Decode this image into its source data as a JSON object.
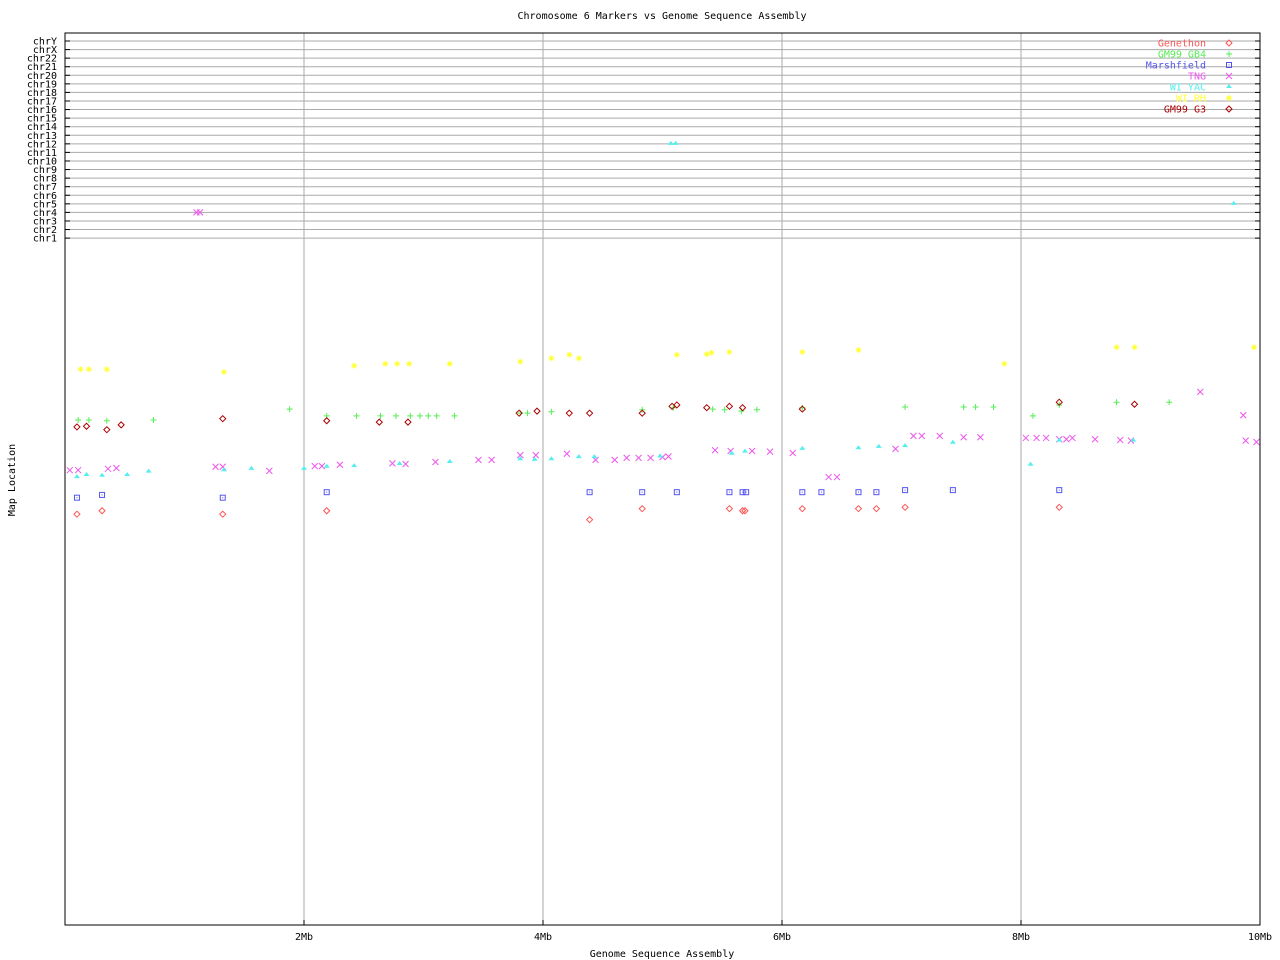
{
  "chart_data": {
    "type": "scatter",
    "title": "Chromosome 6 Markers vs Genome Sequence Assembly",
    "xlabel": "Genome Sequence Assembly",
    "ylabel": "Map Location",
    "xlim": [
      0,
      10
    ],
    "x_unit": "Mb",
    "x_ticks": [
      "2Mb",
      "4Mb",
      "6Mb",
      "8Mb",
      "10Mb"
    ],
    "x_tick_values": [
      2,
      4,
      6,
      8,
      10
    ],
    "y_categories": [
      "chrY",
      "chrX",
      "chr22",
      "chr21",
      "chr20",
      "chr19",
      "chr18",
      "chr17",
      "chr16",
      "chr15",
      "chr14",
      "chr13",
      "chr12",
      "chr11",
      "chr10",
      "chr9",
      "chr8",
      "chr7",
      "chr6",
      "chr5",
      "chr4",
      "chr3",
      "chr2",
      "chr1"
    ],
    "map_location_range": [
      0,
      100
    ],
    "grid": true,
    "legend_position": "top-right",
    "series": [
      {
        "name": "Genethon",
        "color": "#ff5555",
        "marker": "diamond",
        "points": [
          [
            0.1,
            59.8
          ],
          [
            0.31,
            60.3
          ],
          [
            1.32,
            59.8
          ],
          [
            2.19,
            60.3
          ],
          [
            4.39,
            59.0
          ],
          [
            4.83,
            60.6
          ],
          [
            5.56,
            60.6
          ],
          [
            5.67,
            60.3
          ],
          [
            5.69,
            60.3
          ],
          [
            6.17,
            60.6
          ],
          [
            6.64,
            60.6
          ],
          [
            6.79,
            60.6
          ],
          [
            7.03,
            60.8
          ],
          [
            8.32,
            60.8
          ]
        ]
      },
      {
        "name": "GM99 GB4",
        "color": "#55ee55",
        "marker": "plus",
        "points": [
          [
            0.11,
            73.5
          ],
          [
            0.2,
            73.5
          ],
          [
            0.35,
            73.4
          ],
          [
            0.74,
            73.5
          ],
          [
            1.88,
            75.1
          ],
          [
            2.19,
            74.1
          ],
          [
            2.44,
            74.1
          ],
          [
            2.64,
            74.1
          ],
          [
            2.77,
            74.1
          ],
          [
            2.89,
            74.1
          ],
          [
            2.97,
            74.1
          ],
          [
            3.04,
            74.1
          ],
          [
            3.11,
            74.1
          ],
          [
            3.26,
            74.1
          ],
          [
            3.81,
            74.5
          ],
          [
            3.87,
            74.5
          ],
          [
            4.07,
            74.7
          ],
          [
            4.83,
            75.0
          ],
          [
            5.09,
            75.3
          ],
          [
            5.42,
            75.1
          ],
          [
            5.52,
            75.0
          ],
          [
            5.66,
            74.8
          ],
          [
            5.79,
            75.0
          ],
          [
            6.17,
            75.3
          ],
          [
            7.03,
            75.4
          ],
          [
            7.52,
            75.4
          ],
          [
            7.62,
            75.4
          ],
          [
            7.77,
            75.4
          ],
          [
            8.1,
            74.1
          ],
          [
            8.32,
            75.7
          ],
          [
            8.8,
            76.1
          ],
          [
            9.24,
            76.1
          ]
        ]
      },
      {
        "name": "Marshfield",
        "color": "#5555ee",
        "marker": "square",
        "points": [
          [
            0.1,
            62.2
          ],
          [
            0.31,
            62.6
          ],
          [
            1.32,
            62.2
          ],
          [
            2.19,
            63.0
          ],
          [
            4.39,
            63.0
          ],
          [
            4.83,
            63.0
          ],
          [
            5.12,
            63.0
          ],
          [
            5.56,
            63.0
          ],
          [
            5.67,
            63.0
          ],
          [
            5.7,
            63.0
          ],
          [
            6.17,
            63.0
          ],
          [
            6.33,
            63.0
          ],
          [
            6.64,
            63.0
          ],
          [
            6.79,
            63.0
          ],
          [
            7.03,
            63.3
          ],
          [
            7.43,
            63.3
          ],
          [
            8.32,
            63.3
          ]
        ]
      },
      {
        "name": "TNG",
        "color": "#ee55ee",
        "marker": "x",
        "points": [
          [
            0.04,
            66.2
          ],
          [
            0.11,
            66.2
          ],
          [
            0.36,
            66.4
          ],
          [
            0.43,
            66.5
          ],
          [
            1.26,
            66.7
          ],
          [
            1.32,
            66.7
          ],
          [
            1.71,
            66.1
          ],
          [
            2.09,
            66.8
          ],
          [
            2.15,
            66.8
          ],
          [
            2.3,
            67.0
          ],
          [
            2.74,
            67.2
          ],
          [
            2.85,
            67.1
          ],
          [
            3.1,
            67.4
          ],
          [
            3.46,
            67.7
          ],
          [
            3.57,
            67.7
          ],
          [
            3.81,
            68.4
          ],
          [
            3.94,
            68.4
          ],
          [
            4.2,
            68.6
          ],
          [
            4.44,
            67.7
          ],
          [
            4.6,
            67.7
          ],
          [
            4.7,
            68.0
          ],
          [
            4.8,
            68.0
          ],
          [
            4.9,
            68.0
          ],
          [
            5.0,
            68.1
          ],
          [
            5.05,
            68.2
          ],
          [
            5.44,
            69.1
          ],
          [
            5.57,
            69.0
          ],
          [
            5.75,
            69.0
          ],
          [
            5.9,
            68.9
          ],
          [
            6.09,
            68.7
          ],
          [
            6.39,
            65.2
          ],
          [
            6.46,
            65.2
          ],
          [
            6.95,
            69.3
          ],
          [
            7.1,
            71.2
          ],
          [
            7.17,
            71.2
          ],
          [
            7.32,
            71.2
          ],
          [
            7.52,
            71.0
          ],
          [
            7.66,
            71.0
          ],
          [
            8.04,
            70.9
          ],
          [
            8.13,
            70.9
          ],
          [
            8.21,
            70.9
          ],
          [
            8.32,
            70.7
          ],
          [
            8.38,
            70.7
          ],
          [
            8.43,
            70.9
          ],
          [
            8.62,
            70.7
          ],
          [
            8.83,
            70.6
          ],
          [
            8.92,
            70.5
          ],
          [
            9.5,
            77.6
          ],
          [
            9.86,
            74.2
          ],
          [
            9.88,
            70.5
          ],
          [
            9.97,
            70.3
          ]
        ],
        "chromosome_points": [
          [
            1.1,
            "chr4"
          ],
          [
            1.13,
            "chr4"
          ]
        ]
      },
      {
        "name": "WI YAC",
        "color": "#55eeee",
        "marker": "triangle",
        "points": [
          [
            0.1,
            65.2
          ],
          [
            0.18,
            65.5
          ],
          [
            0.31,
            65.4
          ],
          [
            0.52,
            65.5
          ],
          [
            0.7,
            66.0
          ],
          [
            1.33,
            66.2
          ],
          [
            1.56,
            66.4
          ],
          [
            2.0,
            66.4
          ],
          [
            2.19,
            66.7
          ],
          [
            2.42,
            66.8
          ],
          [
            2.8,
            67.1
          ],
          [
            3.22,
            67.4
          ],
          [
            3.81,
            67.8
          ],
          [
            3.93,
            67.7
          ],
          [
            4.07,
            67.8
          ],
          [
            4.3,
            68.1
          ],
          [
            4.43,
            68.1
          ],
          [
            4.98,
            68.2
          ],
          [
            5.58,
            68.6
          ],
          [
            5.69,
            68.9
          ],
          [
            6.17,
            69.3
          ],
          [
            6.64,
            69.4
          ],
          [
            6.81,
            69.6
          ],
          [
            7.03,
            69.7
          ],
          [
            7.43,
            70.2
          ],
          [
            8.32,
            70.5
          ],
          [
            8.94,
            70.5
          ],
          [
            8.08,
            67.0
          ]
        ],
        "chromosome_points": [
          [
            5.07,
            "chr12"
          ],
          [
            5.11,
            "chr12"
          ],
          [
            9.78,
            "chr5"
          ]
        ]
      },
      {
        "name": "WI RH",
        "color": "#ffff33",
        "marker": "asterisk",
        "points": [
          [
            0.13,
            80.9
          ],
          [
            0.2,
            80.9
          ],
          [
            0.35,
            80.9
          ],
          [
            1.33,
            80.5
          ],
          [
            2.42,
            81.4
          ],
          [
            2.68,
            81.7
          ],
          [
            2.78,
            81.7
          ],
          [
            2.88,
            81.7
          ],
          [
            3.22,
            81.7
          ],
          [
            3.81,
            82.0
          ],
          [
            4.07,
            82.5
          ],
          [
            4.22,
            83.0
          ],
          [
            4.3,
            82.5
          ],
          [
            5.12,
            83.0
          ],
          [
            5.37,
            83.1
          ],
          [
            5.41,
            83.3
          ],
          [
            5.56,
            83.4
          ],
          [
            6.17,
            83.4
          ],
          [
            6.64,
            83.7
          ],
          [
            7.86,
            81.7
          ],
          [
            8.8,
            84.1
          ],
          [
            8.95,
            84.1
          ],
          [
            9.95,
            84.1
          ]
        ]
      },
      {
        "name": "GM99 G3",
        "color": "#aa0000",
        "marker": "diamond",
        "points": [
          [
            0.1,
            72.5
          ],
          [
            0.18,
            72.6
          ],
          [
            0.35,
            72.1
          ],
          [
            0.47,
            72.8
          ],
          [
            1.32,
            73.7
          ],
          [
            2.19,
            73.4
          ],
          [
            2.63,
            73.2
          ],
          [
            2.87,
            73.2
          ],
          [
            3.8,
            74.5
          ],
          [
            3.95,
            74.8
          ],
          [
            4.22,
            74.5
          ],
          [
            4.39,
            74.5
          ],
          [
            4.83,
            74.5
          ],
          [
            5.08,
            75.5
          ],
          [
            5.12,
            75.7
          ],
          [
            5.37,
            75.3
          ],
          [
            5.56,
            75.5
          ],
          [
            5.67,
            75.3
          ],
          [
            6.17,
            75.1
          ],
          [
            8.32,
            76.1
          ],
          [
            8.95,
            75.8
          ]
        ]
      }
    ]
  }
}
